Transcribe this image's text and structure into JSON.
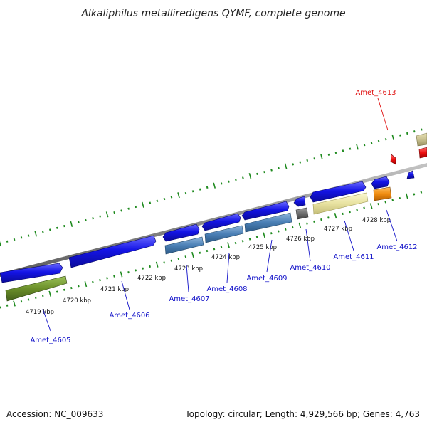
{
  "title": "Alkaliphilus metalliredigens QYMF, complete genome",
  "accession_label": "Accession: NC_009633",
  "topology_label": "Topology: circular; Length: 4,929,566 bp; Genes: 4,763",
  "colors": {
    "backbone": "#8c8c8c",
    "tick": "#1e8a1e",
    "blue_gene": "#1414e6",
    "steel_gene": "#4a7fb5",
    "olive_gene": "#6b8f2a",
    "gray_gene": "#6e6e6e",
    "khaki_gene": "#e8e2a0",
    "tan_gene": "#c9c291",
    "orange_gene": "#f08c10",
    "red_gene": "#ee1010",
    "label_blue": "#1010c8",
    "label_red": "#e01010"
  },
  "kbp_ticks": [
    "4719 kbp",
    "4720 kbp",
    "4721 kbp",
    "4722 kbp",
    "4723 kbp",
    "4724 kbp",
    "4725 kbp",
    "4726 kbp",
    "4727 kbp",
    "4728 kbp"
  ],
  "gene_labels": [
    {
      "name": "Amet_4605",
      "color": "blue"
    },
    {
      "name": "Amet_4606",
      "color": "blue"
    },
    {
      "name": "Amet_4607",
      "color": "blue"
    },
    {
      "name": "Amet_4608",
      "color": "blue"
    },
    {
      "name": "Amet_4609",
      "color": "blue"
    },
    {
      "name": "Amet_4610",
      "color": "blue"
    },
    {
      "name": "Amet_4611",
      "color": "blue"
    },
    {
      "name": "Amet_4612",
      "color": "blue"
    },
    {
      "name": "Amet_4613",
      "color": "red"
    }
  ]
}
